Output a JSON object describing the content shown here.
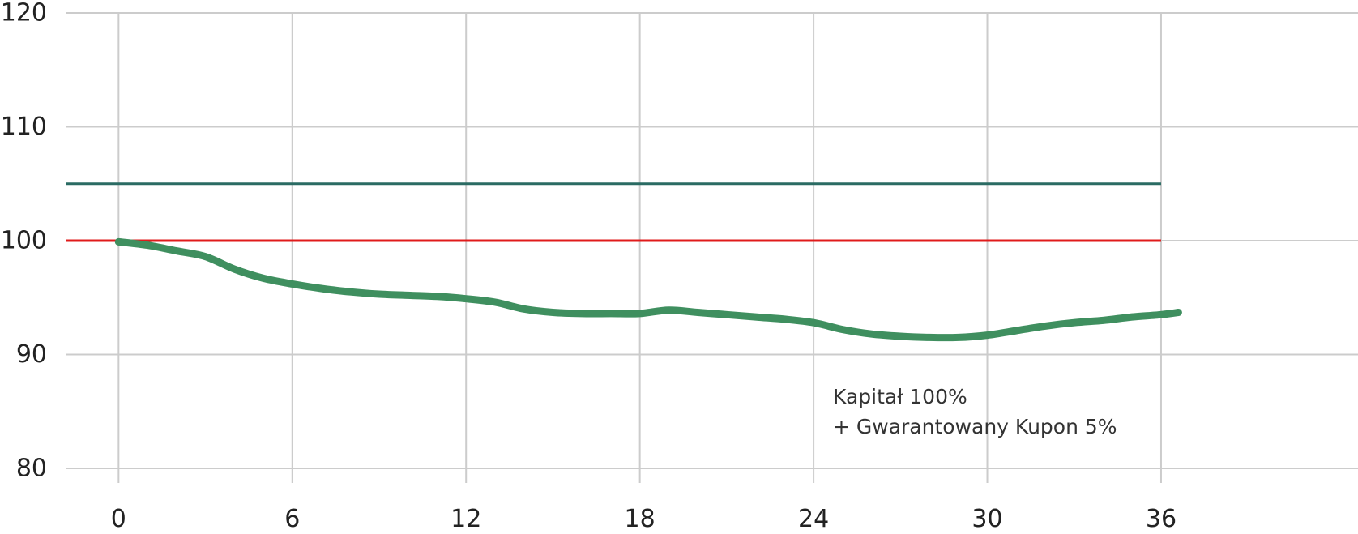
{
  "chart_data": {
    "type": "line",
    "x_ticks": [
      0,
      6,
      12,
      18,
      24,
      30,
      36
    ],
    "y_ticks": [
      80,
      90,
      100,
      110,
      120
    ],
    "xlim": [
      -1.8,
      42.8
    ],
    "ylim": [
      80,
      120
    ],
    "grid": true,
    "legend": "none",
    "annotation_lines": [
      "Kapitał 100%",
      "+ Gwarantowany Kupon 5%"
    ],
    "reference_lines": [
      {
        "y": 105,
        "x_start": -1.8,
        "x_end": 36,
        "color": "#2a6b63"
      },
      {
        "y": 100,
        "x_start": -1.8,
        "x_end": 36,
        "color": "#e01b1b"
      }
    ],
    "series": [
      {
        "color": "#3f8f5f",
        "x": [
          0,
          1,
          2,
          3,
          4,
          5,
          6,
          7,
          8,
          9,
          10,
          11,
          12,
          13,
          14,
          15,
          16,
          17,
          18,
          19,
          20,
          21,
          22,
          23,
          24,
          25,
          26,
          27,
          28,
          29,
          30,
          31,
          32,
          33,
          34,
          35,
          36,
          36.6
        ],
        "y": [
          99.9,
          99.6,
          99.1,
          98.6,
          97.5,
          96.7,
          96.2,
          95.8,
          95.5,
          95.3,
          95.2,
          95.1,
          94.9,
          94.6,
          94.0,
          93.7,
          93.6,
          93.6,
          93.6,
          93.9,
          93.7,
          93.5,
          93.3,
          93.1,
          92.8,
          92.2,
          91.8,
          91.6,
          91.5,
          91.5,
          91.7,
          92.1,
          92.5,
          92.8,
          93.0,
          93.3,
          93.5,
          93.7
        ]
      }
    ]
  }
}
